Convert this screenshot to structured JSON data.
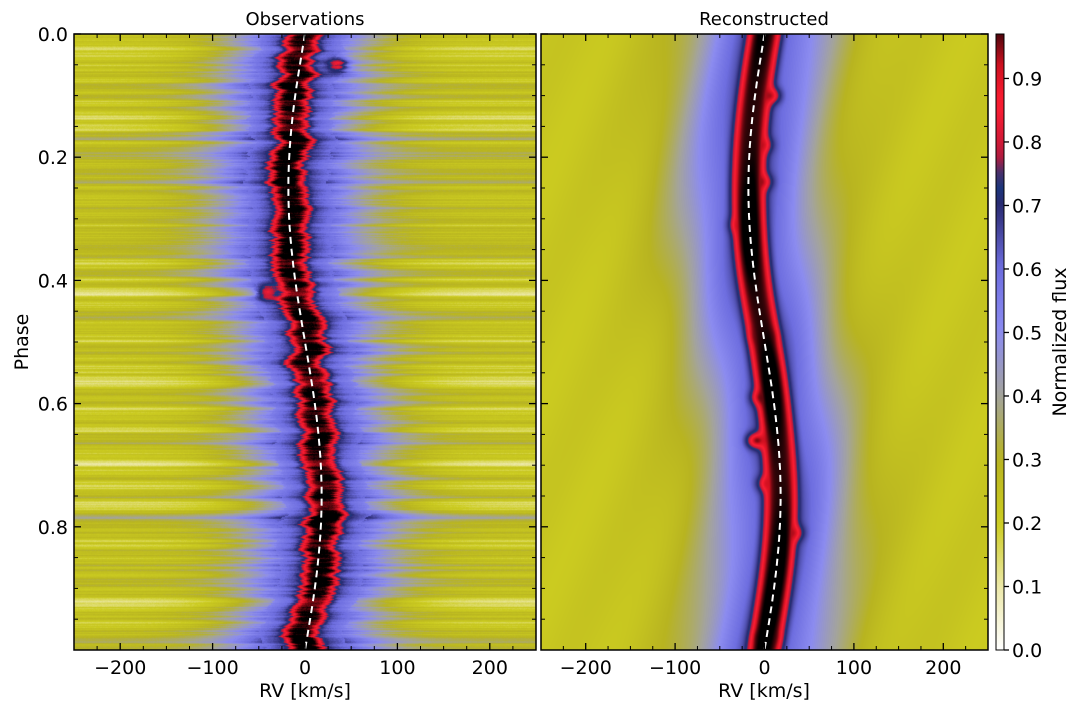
{
  "chart_data": {
    "type": "heatmap",
    "colormap": "gist_stern_r-like (white → yellow → grey → blue → dark navy → red → black)",
    "colormap_stops": [
      {
        "v": 0.0,
        "color": "#ffffff"
      },
      {
        "v": 0.1,
        "color": "#ece8a8"
      },
      {
        "v": 0.2,
        "color": "#cccc20"
      },
      {
        "v": 0.3,
        "color": "#b8b420"
      },
      {
        "v": 0.4,
        "color": "#a4a49c"
      },
      {
        "v": 0.5,
        "color": "#8c8cf0"
      },
      {
        "v": 0.6,
        "color": "#6e6ee0"
      },
      {
        "v": 0.7,
        "color": "#2a2a70"
      },
      {
        "v": 0.74,
        "color": "#163a80"
      },
      {
        "v": 0.78,
        "color": "#c01838"
      },
      {
        "v": 0.86,
        "color": "#ff1e32"
      },
      {
        "v": 0.92,
        "color": "#d01020"
      },
      {
        "v": 1.0,
        "color": "#000000"
      }
    ],
    "rv_model": {
      "amplitude_km_s": 18,
      "phase_of_zero_velocity": 0.5,
      "shape": "sinusoid",
      "description": "dashed white RV curve, v = 18·sin(2π(φ − 0.5))"
    },
    "panels": [
      {
        "title": "Observations",
        "xlabel": "RV [km/s]",
        "ylabel": "Phase",
        "xlim": [
          -250,
          250
        ],
        "ylim": [
          0.0,
          1.0
        ],
        "y_inverted": true,
        "x_ticks": [
          -200,
          -100,
          0,
          100,
          200
        ],
        "x_tick_labels": [
          "−200",
          "−100",
          "0",
          "100",
          "200"
        ],
        "y_ticks": [
          0.0,
          0.2,
          0.4,
          0.6,
          0.8
        ],
        "y_tick_labels": [
          "0.0",
          "0.2",
          "0.4",
          "0.6",
          "0.8"
        ],
        "line_center_flux": 0.88,
        "line_width_km_s": 40,
        "noisy": true,
        "features": [
          {
            "phase": 0.05,
            "rv": 35,
            "flux": 0.85,
            "note": "bright emission knot near top"
          },
          {
            "phase": 0.42,
            "rv": -40,
            "flux": 0.88,
            "note": "blueward extension"
          },
          {
            "phase": 0.48,
            "rv": 5,
            "flux": 0.97,
            "note": "dark core"
          },
          {
            "phase": 0.79,
            "rv": 28,
            "flux": 0.98,
            "note": "dark core"
          }
        ]
      },
      {
        "title": "Reconstructed",
        "xlabel": "RV [km/s]",
        "xlim": [
          -250,
          250
        ],
        "ylim": [
          0.0,
          1.0
        ],
        "y_inverted": true,
        "x_ticks": [
          -200,
          -100,
          0,
          100,
          200
        ],
        "x_tick_labels": [
          "−200",
          "−100",
          "0",
          "100",
          "200"
        ],
        "line_center_flux": 0.88,
        "line_width_km_s": 40,
        "noisy": false,
        "features": [
          {
            "phase": 0.1,
            "rv": 5,
            "flux": 0.95
          },
          {
            "phase": 0.18,
            "rv": -5,
            "flux": 0.93
          },
          {
            "phase": 0.24,
            "rv": -5,
            "flux": 0.93
          },
          {
            "phase": 0.31,
            "rv": -25,
            "flux": 0.92
          },
          {
            "phase": 0.49,
            "rv": -2,
            "flux": 0.98
          },
          {
            "phase": 0.59,
            "rv": -2,
            "flux": 0.95
          },
          {
            "phase": 0.66,
            "rv": -8,
            "flux": 0.94
          },
          {
            "phase": 0.73,
            "rv": 5,
            "flux": 0.93
          },
          {
            "phase": 0.81,
            "rv": 30,
            "flux": 0.92
          },
          {
            "phase": 0.98,
            "rv": 2,
            "flux": 0.98
          }
        ]
      }
    ],
    "colorbar": {
      "label": "Normalized flux",
      "vmin": 0.0,
      "vmax": 0.97,
      "ticks": [
        0.0,
        0.1,
        0.2,
        0.3,
        0.4,
        0.5,
        0.6,
        0.7,
        0.8,
        0.9
      ],
      "tick_labels": [
        "0.0",
        "0.1",
        "0.2",
        "0.3",
        "0.4",
        "0.5",
        "0.6",
        "0.7",
        "0.8",
        "0.9"
      ]
    }
  }
}
